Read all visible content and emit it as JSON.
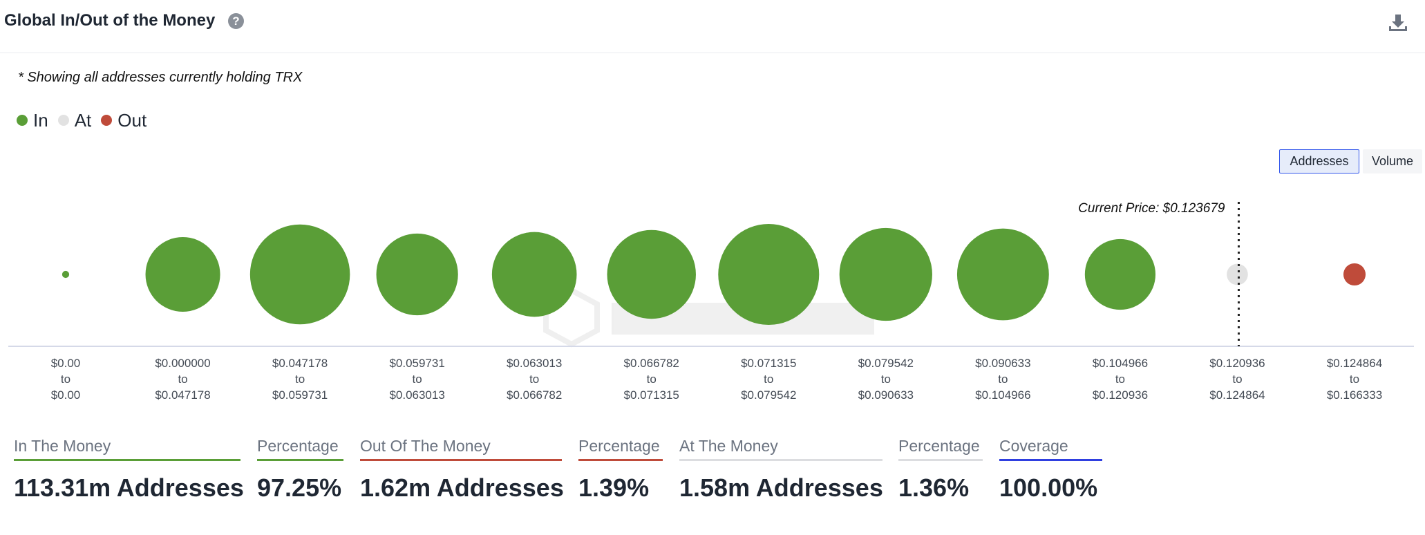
{
  "header": {
    "title": "Global In/Out of the Money",
    "help_glyph": "?"
  },
  "note": "* Showing all addresses currently holding TRX",
  "legend": [
    {
      "label": "In",
      "color": "#5a9e37"
    },
    {
      "label": "At",
      "color": "#e2e2e2"
    },
    {
      "label": "Out",
      "color": "#bf4b3a"
    }
  ],
  "toggles": {
    "addresses": "Addresses",
    "volume": "Volume",
    "active": "addresses"
  },
  "colors": {
    "in": "#5a9e37",
    "at": "#e2e2e2",
    "out": "#bf4b3a",
    "axis": "#d5d9e8",
    "coverage": "#2f3fe0"
  },
  "chart_data": {
    "type": "bubble",
    "current_price_label": "Current Price: $0.123679",
    "current_price_bucket_index": 10,
    "range_connector": "to",
    "buckets": [
      {
        "low": "$0.00",
        "high": "$0.00",
        "status": "in",
        "relative_size": 0.07
      },
      {
        "low": "$0.000000",
        "high": "$0.047178",
        "status": "in",
        "relative_size": 0.74
      },
      {
        "low": "$0.047178",
        "high": "$0.059731",
        "status": "in",
        "relative_size": 0.99
      },
      {
        "low": "$0.059731",
        "high": "$0.063013",
        "status": "in",
        "relative_size": 0.81
      },
      {
        "low": "$0.063013",
        "high": "$0.066782",
        "status": "in",
        "relative_size": 0.84
      },
      {
        "low": "$0.066782",
        "high": "$0.071315",
        "status": "in",
        "relative_size": 0.88
      },
      {
        "low": "$0.071315",
        "high": "$0.079542",
        "status": "in",
        "relative_size": 1.0
      },
      {
        "low": "$0.079542",
        "high": "$0.090633",
        "status": "in",
        "relative_size": 0.92
      },
      {
        "low": "$0.090633",
        "high": "$0.104966",
        "status": "in",
        "relative_size": 0.91
      },
      {
        "low": "$0.104966",
        "high": "$0.120936",
        "status": "in",
        "relative_size": 0.7
      },
      {
        "low": "$0.120936",
        "high": "$0.124864",
        "status": "at",
        "relative_size": 0.21
      },
      {
        "low": "$0.124864",
        "high": "$0.166333",
        "status": "out",
        "relative_size": 0.22
      }
    ]
  },
  "stats": [
    {
      "label": "In The Money",
      "value": "113.31m Addresses",
      "color": "#5a9e37"
    },
    {
      "label": "Percentage",
      "value": "97.25%",
      "color": "#5a9e37"
    },
    {
      "label": "Out Of The Money",
      "value": "1.62m Addresses",
      "color": "#bf4b3a"
    },
    {
      "label": "Percentage",
      "value": "1.39%",
      "color": "#bf4b3a"
    },
    {
      "label": "At The Money",
      "value": "1.58m Addresses",
      "color": "#dcdde0"
    },
    {
      "label": "Percentage",
      "value": "1.36%",
      "color": "#dcdde0"
    },
    {
      "label": "Coverage",
      "value": "100.00%",
      "color": "#2f3fe0"
    }
  ]
}
